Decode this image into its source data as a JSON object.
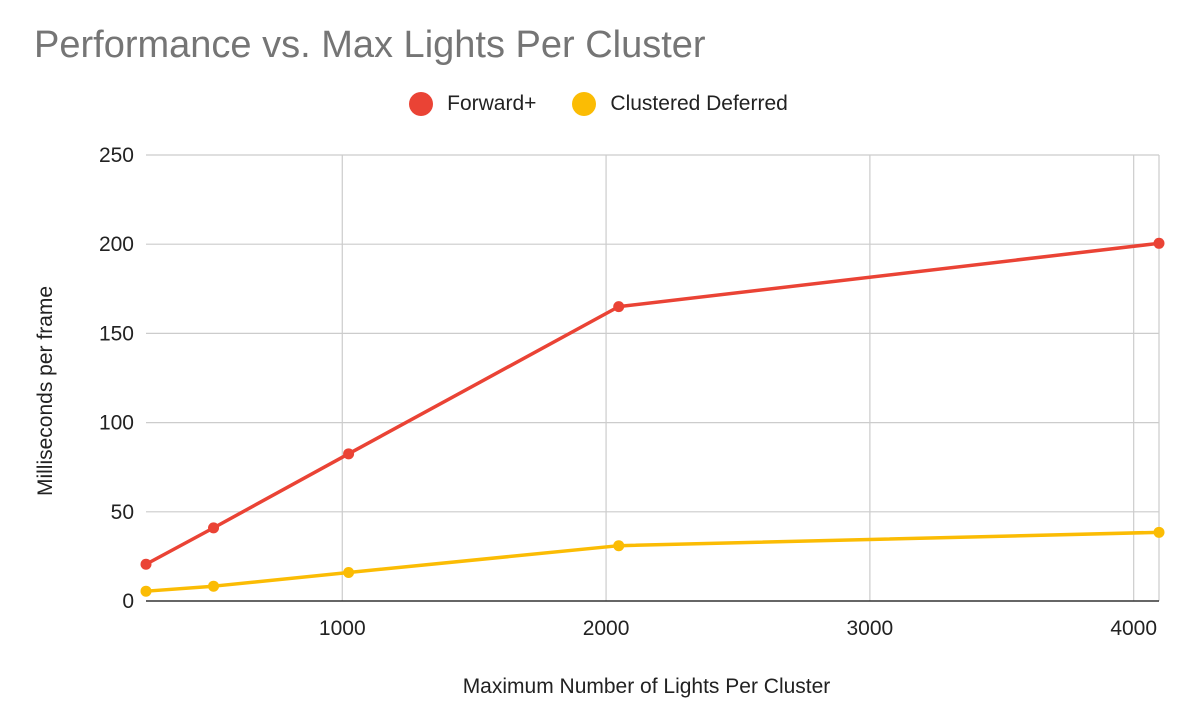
{
  "chart_data": {
    "type": "line",
    "title": "Performance vs. Max Lights Per Cluster",
    "xlabel": "Maximum Number of Lights Per Cluster",
    "ylabel": "Milliseconds per frame",
    "xlim": [
      256,
      4096
    ],
    "ylim": [
      0,
      250
    ],
    "x_ticks": [
      1000,
      2000,
      3000,
      4000
    ],
    "y_ticks": [
      0,
      50,
      100,
      150,
      200,
      250
    ],
    "grid": true,
    "legend_position": "top",
    "x": [
      256,
      512,
      1024,
      2048,
      4096
    ],
    "series": [
      {
        "name": "Forward+",
        "color": "#ea4335",
        "values": [
          20.6,
          41,
          82.5,
          165,
          200.5
        ]
      },
      {
        "name": "Clustered Deferred",
        "color": "#fbbc04",
        "values": [
          5.5,
          8.3,
          16,
          31,
          38.5
        ]
      }
    ]
  }
}
